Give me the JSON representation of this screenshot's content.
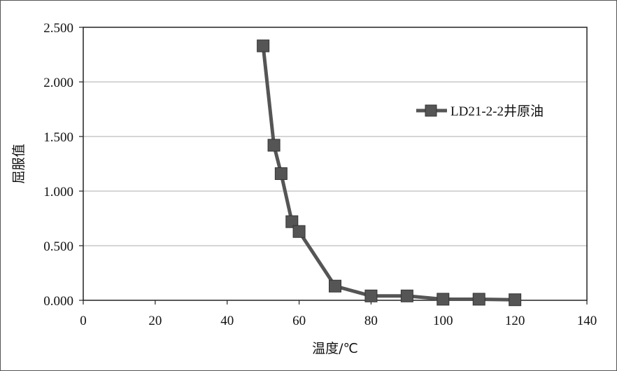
{
  "chart_data": {
    "type": "line",
    "xlabel": "温度/℃",
    "ylabel": "屈服值",
    "xlim": [
      0,
      140
    ],
    "ylim": [
      0,
      2.5
    ],
    "x_ticks": [
      "0",
      "20",
      "40",
      "60",
      "80",
      "100",
      "120",
      "140"
    ],
    "y_ticks": [
      "0.000",
      "0.500",
      "1.000",
      "1.500",
      "2.000",
      "2.500"
    ],
    "grid": "horizontal",
    "legend_position": "right",
    "series": [
      {
        "name": "LD21-2-2井原油",
        "color": "#555555",
        "marker": "square",
        "x": [
          50,
          53,
          55,
          58,
          60,
          70,
          80,
          90,
          100,
          110,
          120
        ],
        "y": [
          2.33,
          1.42,
          1.16,
          0.72,
          0.63,
          0.13,
          0.04,
          0.04,
          0.01,
          0.01,
          0.005
        ]
      }
    ]
  }
}
